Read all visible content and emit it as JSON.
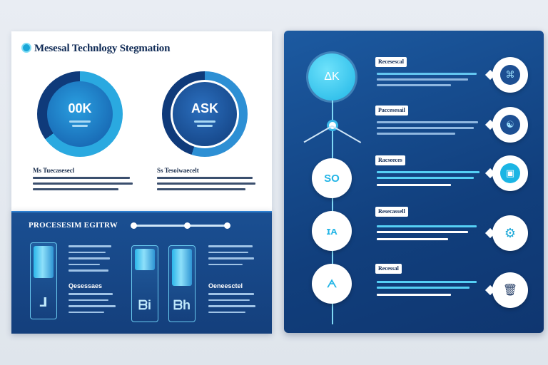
{
  "header": {
    "title": "Mesesal Technlogy Stegmation",
    "logo_icon": "hexagon-logo-icon"
  },
  "donuts": [
    {
      "value": "00K",
      "ring_color": "#2aa9e0",
      "track_color": "#0f3a7a",
      "progress": 0.65
    },
    {
      "value": "ASK",
      "ring_color": "#2d8fd4",
      "track_color": "#0f3a7a",
      "progress": 0.55
    }
  ],
  "captions": [
    {
      "heading": "Ms Tuecasesecl"
    },
    {
      "heading": "Ss Tesoiwaecelt"
    }
  ],
  "bottom_panel": {
    "title": "PROCESESIM EGITRW",
    "section_a": "Qesessaes",
    "section_b": "Oeneesctel",
    "cylinders": [
      {
        "glyph": "ᒧ",
        "fill": 0.35
      },
      {
        "glyph": "ᗷi",
        "fill": 0.22
      },
      {
        "glyph": "ᗷh",
        "fill": 0.42
      }
    ]
  },
  "timeline": {
    "hub_label": "ΔK",
    "nodes": [
      {
        "glyph": "SO"
      },
      {
        "glyph": "ɪᴀ"
      },
      {
        "glyph": "ᗅ"
      }
    ],
    "rows": [
      {
        "label": "Recesescal",
        "icon": "fingerprint-icon"
      },
      {
        "label": "Paccesesail",
        "icon": "brain-icon"
      },
      {
        "label": "Racseeces",
        "icon": "chip-icon"
      },
      {
        "label": "Resecassell",
        "icon": "robot-arm-icon"
      },
      {
        "label": "Recessal",
        "icon": "trash-icon"
      }
    ]
  },
  "colors": {
    "accent": "#23b5e6",
    "panel_blue": "#143f7c",
    "dark_text": "#0f2a55"
  }
}
